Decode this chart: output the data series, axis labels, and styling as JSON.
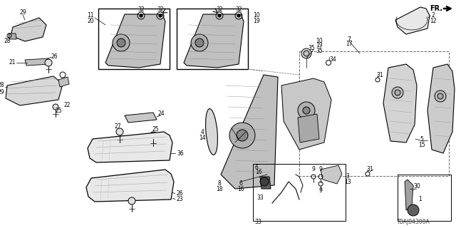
{
  "bg_color": "#ffffff",
  "diagram_code": "TBAJ84300A",
  "fig_width": 6.4,
  "fig_height": 3.2,
  "dpi": 100
}
